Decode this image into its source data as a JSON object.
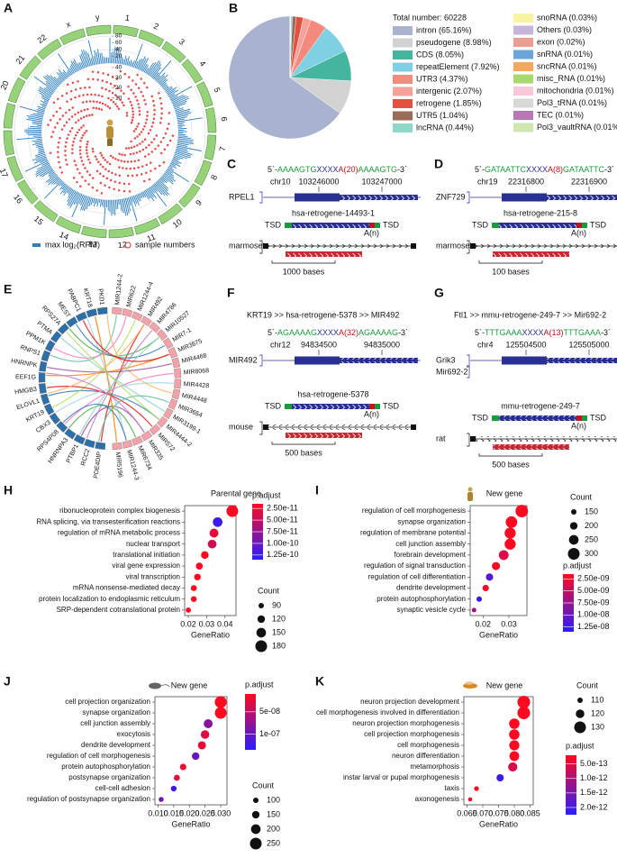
{
  "panels": {
    "A": {
      "label": "A",
      "chromosomes": [
        "1",
        "2",
        "3",
        "4",
        "5",
        "6",
        "7",
        "8",
        "9",
        "10",
        "11",
        "12",
        "13",
        "14",
        "15",
        "16",
        "17",
        "18",
        "19",
        "20",
        "21",
        "22",
        "x",
        "y"
      ],
      "bar_ticks": [
        80,
        60,
        40,
        20
      ],
      "dot_ticks": [
        40,
        30,
        20,
        10
      ],
      "legend_bar": "max log₂(RPM)",
      "legend_dot": "sample numbers"
    },
    "C": {
      "label": "C",
      "sequence": [
        {
          "text": "5`-",
          "color": "#111111"
        },
        {
          "text": "AAAAGTG",
          "color": "#1c9a3e"
        },
        {
          "text": "XXXX",
          "color": "#2a2f93"
        },
        {
          "text": "A(20)",
          "color": "#c0141e"
        },
        {
          "text": "AAAAGTG",
          "color": "#1c9a3e"
        },
        {
          "text": "-3`",
          "color": "#111111"
        }
      ],
      "chr": "chr10",
      "positions": [
        103246000,
        103247000
      ],
      "genes": [
        "RPEL1"
      ],
      "retrogene": "hsa-retrogene-14493-1",
      "tsd": [
        "TSD",
        "TSD"
      ],
      "polyA": "A(n)",
      "species": "marmoset",
      "scale": "1000 bases"
    },
    "D": {
      "label": "D",
      "sequence": [
        {
          "text": "5`-",
          "color": "#111111"
        },
        {
          "text": "GATAATTC",
          "color": "#1c9a3e"
        },
        {
          "text": "XXXX",
          "color": "#2a2f93"
        },
        {
          "text": "A(8)",
          "color": "#c0141e"
        },
        {
          "text": "GATAATTC",
          "color": "#1c9a3e"
        },
        {
          "text": "-3`",
          "color": "#111111"
        }
      ],
      "chr": "chr19",
      "positions": [
        22316800,
        22316900
      ],
      "genes": [
        "ZNF729"
      ],
      "retrogene": "hsa-retrogene-215-8",
      "tsd": [
        "TSD",
        "TSD"
      ],
      "polyA": "A(n)",
      "species": "marmoset",
      "scale": "100 bases"
    },
    "E": {
      "label": "E",
      "genes": [
        "PDE4DIP",
        "RCC2",
        "PTBP1",
        "HNRNPA3",
        "RPS4P08",
        "CBX3",
        "KRT19",
        "ELOVL1",
        "HMGB3",
        "EEF1G",
        "HNRNPK",
        "RNPS1",
        "PPM1K",
        "PTMA",
        "RPS27A",
        "MEST",
        "PABPC1",
        "KRT18",
        "PKD1"
      ],
      "mirs": [
        "MIR1244-2",
        "MIR622",
        "MIR1244-4",
        "MIR492",
        "MIR4786",
        "MIR10527",
        "MIR7-1",
        "MIR3675",
        "MIR4468",
        "MIR8068",
        "MIR4428",
        "MIR4448",
        "MIR3654",
        "MIR3199-1",
        "MIR4444-2",
        "MIR572",
        "MIR335",
        "MIR6734",
        "MIR1244-3",
        "MIR5196"
      ]
    },
    "F": {
      "label": "F",
      "header": "KRT19 >> hsa-retrogene-5378 >> MIR492",
      "sequence": [
        {
          "text": "5`-",
          "color": "#111111"
        },
        {
          "text": "AGAAAAG",
          "color": "#1c9a3e"
        },
        {
          "text": "XXXX",
          "color": "#2a2f93"
        },
        {
          "text": "A(32)",
          "color": "#c0141e"
        },
        {
          "text": "AGAAAAG",
          "color": "#1c9a3e"
        },
        {
          "text": "-3`",
          "color": "#111111"
        }
      ],
      "chr": "chr12",
      "positions": [
        94834500,
        94835000
      ],
      "genes": [
        "MIR492"
      ],
      "retrogene": "hsa-retrogene-5378",
      "tsd": [
        "TSD",
        "TSD"
      ],
      "polyA": "A(n)",
      "species": "mouse",
      "scale": "500 bases"
    },
    "G": {
      "label": "G",
      "header": "Ftl1 >> mmu-retrogene-249-7 >> Mir692-2",
      "sequence": [
        {
          "text": "5`-",
          "color": "#111111"
        },
        {
          "text": "TTTGAAA",
          "color": "#1c9a3e"
        },
        {
          "text": "XXXX",
          "color": "#2a2f93"
        },
        {
          "text": "A(13)",
          "color": "#c0141e"
        },
        {
          "text": "TTTGAAA",
          "color": "#1c9a3e"
        },
        {
          "text": "-3`",
          "color": "#111111"
        }
      ],
      "chr": "chr4",
      "positions": [
        125504500,
        125505000
      ],
      "genes": [
        "Grik3",
        "Mir692-2"
      ],
      "retrogene": "mmu-retrogene-249-7",
      "tsd": [
        "TSD",
        "TSD"
      ],
      "polyA": "A(n)",
      "species": "rat",
      "scale": "500 bases"
    }
  },
  "chart_data": [
    {
      "type": "pie",
      "label": "B",
      "total_label": "Total number: 60228",
      "categories": [
        "intron (65.16%)",
        "pseudogene (8.98%)",
        "CDS (8.05%)",
        "repeatElement (7.92%)",
        "UTR3 (4.37%)",
        "intergenic (2.07%)",
        "retrogene (1.85%)",
        "UTR5 (1.04%)",
        "lncRNA (0.44%)",
        "snoRNA (0.03%)",
        "Others (0.03%)",
        "exon (0.02%)",
        "snRNA (0.01%)",
        "sncRNA (0.01%)",
        "misc_RNA (0.01%)",
        "mitochondria (0.01%)",
        "Pol3_tRNA (0.01%)",
        "TEC (0.01%)",
        "Pol3_vaultRNA (0.01%)"
      ],
      "values": [
        65.16,
        8.98,
        8.05,
        7.92,
        4.37,
        2.07,
        1.85,
        1.04,
        0.44,
        0.03,
        0.03,
        0.02,
        0.01,
        0.01,
        0.01,
        0.01,
        0.01,
        0.01,
        0.01
      ],
      "colors": [
        "#a9b3cf",
        "#d2d2d2",
        "#46b59f",
        "#7fd0e2",
        "#f48a7e",
        "#f6a29a",
        "#e2503f",
        "#9a6a5a",
        "#8fd8c9",
        "#f8f4a4",
        "#c7b4d8",
        "#ec9e92",
        "#6aa4d8",
        "#f3a85c",
        "#a9d86e",
        "#f7c8da",
        "#d8d8d8",
        "#b778b5",
        "#cfe8b2"
      ],
      "start_angle": 90,
      "counterclock": true
    },
    {
      "type": "dot",
      "label": "H",
      "title": "Parental gene",
      "xlabel": "GeneRatio",
      "categories": [
        "ribonucleoprotein complex biogenesis",
        "RNA splicing, via transesterification reactions",
        "regulation of mRNA metabolic process",
        "nuclear transport",
        "translational initiation",
        "viral gene expression",
        "viral transcription",
        "mRNA nonsense-mediated decay",
        "protein localization to endoplasmic reticulum",
        "SRP-dependent cotranslational protein"
      ],
      "gene_ratio": [
        0.044,
        0.036,
        0.034,
        0.033,
        0.029,
        0.026,
        0.025,
        0.023,
        0.023,
        0.02
      ],
      "count": [
        180,
        150,
        140,
        138,
        122,
        112,
        108,
        98,
        96,
        88
      ],
      "p_adjust": [
        1.6e-11,
        1.25e-10,
        3e-11,
        4.2e-11,
        1.6e-11,
        1.6e-11,
        1.6e-11,
        1.6e-11,
        1.7e-11,
        1.6e-11
      ],
      "xlim": [
        0.018,
        0.046
      ],
      "xticks": [
        0.02,
        0.03,
        0.04
      ],
      "count_label": "Count",
      "count_ticks": [
        90,
        120,
        150,
        180
      ],
      "color_label": "p.adjust",
      "color_ticks": [
        {
          "value": 2.5e-11,
          "label": "2.50e-11"
        },
        {
          "value": 5e-11,
          "label": "5.00e-11"
        },
        {
          "value": 7.5e-11,
          "label": "7.50e-11"
        },
        {
          "value": 1e-10,
          "label": "1.00e-10"
        },
        {
          "value": 1.25e-10,
          "label": "1.25e-10"
        }
      ],
      "clim": [
        1.5e-11,
        1.35e-10
      ],
      "color_low": "#ff0a1e",
      "color_high": "#2a1cff"
    },
    {
      "type": "dot",
      "label": "I",
      "title": "New gene",
      "xlabel": "GeneRatio",
      "categories": [
        "regulation of cell morphogenesis",
        "synapse organization",
        "regulation of membrane potential",
        "cell junction assembly",
        "forebrain development",
        "regulation of signal transduction",
        "regulation of cell differentiation",
        "dendrite development",
        "protein autophosphorylation",
        "synaptic vesicle cycle"
      ],
      "gene_ratio": [
        0.035,
        0.031,
        0.0305,
        0.0305,
        0.028,
        0.025,
        0.0225,
        0.021,
        0.0185,
        0.0165
      ],
      "count": [
        320,
        295,
        285,
        285,
        255,
        215,
        195,
        175,
        150,
        130
      ],
      "p_adjust": [
        1.6e-09,
        1.6e-09,
        1.7e-09,
        1.7e-09,
        3.5e-09,
        2e-09,
        1.1e-08,
        2e-09,
        1.3e-08,
        6.5e-09
      ],
      "xlim": [
        0.015,
        0.037
      ],
      "xticks": [
        0.02,
        0.03
      ],
      "count_label": "Count",
      "count_ticks": [
        150,
        200,
        250,
        300
      ],
      "color_label": "p.adjust",
      "color_ticks": [
        {
          "value": 2.5e-09,
          "label": "2.50e-09"
        },
        {
          "value": 5e-09,
          "label": "5.00e-09"
        },
        {
          "value": 7.5e-09,
          "label": "7.50e-09"
        },
        {
          "value": 1e-08,
          "label": "1.00e-08"
        },
        {
          "value": 1.25e-08,
          "label": "1.25e-08"
        }
      ],
      "clim": [
        1.5e-09,
        1.35e-08
      ],
      "color_low": "#ff0a1e",
      "color_high": "#2a1cff"
    },
    {
      "type": "dot",
      "label": "J",
      "title": "New gene",
      "xlabel": "GeneRatio",
      "categories": [
        "cell projection organization",
        "synapse organization",
        "cell junction assembly",
        "exocytosis",
        "dendrite development",
        "regulation of cell morphogenesis",
        "protein autophosphorylation",
        "postsynapse organization",
        "cell-cell adhesion",
        "regulation of postsynapse organization"
      ],
      "gene_ratio": [
        0.03,
        0.03,
        0.026,
        0.025,
        0.024,
        0.022,
        0.018,
        0.016,
        0.015,
        0.011
      ],
      "count": [
        255,
        250,
        185,
        175,
        165,
        150,
        125,
        115,
        108,
        90
      ],
      "p_adjust": [
        1.1e-08,
        1.1e-08,
        8e-08,
        3e-08,
        2.5e-08,
        1e-07,
        2e-08,
        2.5e-08,
        1.25e-07,
        9e-08
      ],
      "xlim": [
        0.009,
        0.032
      ],
      "xticks": [
        {
          "value": 0.01,
          "label": "0.010"
        },
        0.015,
        {
          "value": 0.02,
          "label": "0.020"
        },
        0.025,
        {
          "value": 0.03,
          "label": "0.030"
        }
      ],
      "count_label": "Count",
      "count_ticks": [
        100,
        150,
        200,
        250
      ],
      "color_label": "p.adjust",
      "color_ticks": [
        {
          "value": 5e-08,
          "label": "5e-08"
        },
        {
          "value": 1e-07,
          "label": "1e-07"
        }
      ],
      "clim": [
        1e-08,
        1.35e-07
      ],
      "color_low": "#ff0a1e",
      "color_high": "#2a1cff"
    },
    {
      "type": "dot",
      "label": "K",
      "title": "New gene",
      "xlabel": "GeneRatio",
      "categories": [
        "neuron projection development",
        "cell morphogenesis involved in differentiation",
        "neuron projection morphogenesis",
        "cell projection morphogenesis",
        "cell morphogenesis",
        "neuron differentiation",
        "metamorphosis",
        "instar larval or pupal morphogenesis",
        "taxis",
        "axonogenesis"
      ],
      "gene_ratio": [
        0.083,
        0.083,
        0.08,
        0.08,
        0.08,
        0.08,
        0.0795,
        0.0755,
        0.068,
        0.066
      ],
      "count": [
        133,
        133,
        126,
        126,
        125,
        124,
        122,
        116,
        108,
        106
      ],
      "p_adjust": [
        2.2e-13,
        2.2e-13,
        2.3e-13,
        2.3e-13,
        2.3e-13,
        2.4e-13,
        6e-13,
        2.1e-12,
        2.5e-13,
        2.4e-13
      ],
      "xlim": [
        0.064,
        0.086
      ],
      "xticks": [
        0.065,
        {
          "value": 0.07,
          "label": "0.070"
        },
        0.075,
        {
          "value": 0.08,
          "label": "0.080"
        },
        0.085
      ],
      "count_label": "Count",
      "count_ticks": [
        110,
        120,
        130
      ],
      "color_label": "p.adjust",
      "color_ticks": [
        {
          "value": 5e-13,
          "label": "5.0e-13"
        },
        {
          "value": 1e-12,
          "label": "1.0e-12"
        },
        {
          "value": 1.5e-12,
          "label": "1.5e-12"
        },
        {
          "value": 2e-12,
          "label": "2.0e-12"
        }
      ],
      "clim": [
        2e-13,
        2.25e-12
      ],
      "color_low": "#ff0a1e",
      "color_high": "#2a1cff"
    }
  ]
}
